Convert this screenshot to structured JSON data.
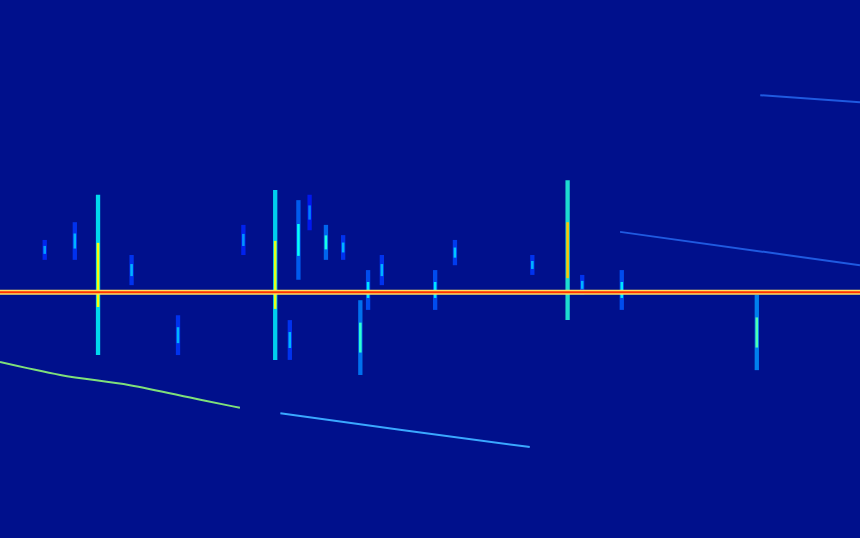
{
  "chart_data": {
    "type": "spectrogram",
    "tick_labels": false,
    "color": "#00108c",
    "xlim": [
      0,
      100
    ],
    "ylim": [
      0,
      100
    ],
    "carrier": {
      "value": 45.7,
      "color": "#ff3000"
    },
    "streaks": [
      {
        "x": 5.2,
        "y": [
          51.7,
          55.4
        ],
        "intensity": 0.28
      },
      {
        "x": 8.7,
        "y": [
          51.7,
          58.7
        ],
        "intensity": 0.3
      },
      {
        "x": 11.4,
        "y": [
          34.0,
          63.8
        ],
        "intensity": 0.62
      },
      {
        "x": 15.3,
        "y": [
          47.0,
          52.6
        ],
        "intensity": 0.3
      },
      {
        "x": 20.7,
        "y": [
          34.0,
          41.4
        ],
        "intensity": 0.3
      },
      {
        "x": 28.3,
        "y": [
          52.6,
          58.2
        ],
        "intensity": 0.27
      },
      {
        "x": 32.0,
        "y": [
          33.1,
          64.7
        ],
        "intensity": 0.6
      },
      {
        "x": 33.7,
        "y": [
          33.1,
          40.5
        ],
        "intensity": 0.3
      },
      {
        "x": 34.7,
        "y": [
          48.0,
          62.8
        ],
        "intensity": 0.38
      },
      {
        "x": 36.0,
        "y": [
          57.2,
          63.8
        ],
        "intensity": 0.25
      },
      {
        "x": 37.9,
        "y": [
          51.7,
          58.2
        ],
        "intensity": 0.4
      },
      {
        "x": 39.9,
        "y": [
          51.7,
          56.3
        ],
        "intensity": 0.3
      },
      {
        "x": 41.9,
        "y": [
          30.3,
          44.2
        ],
        "intensity": 0.42
      },
      {
        "x": 42.8,
        "y": [
          42.4,
          49.8
        ],
        "intensity": 0.35
      },
      {
        "x": 44.4,
        "y": [
          47.0,
          52.6
        ],
        "intensity": 0.3
      },
      {
        "x": 50.6,
        "y": [
          42.4,
          49.8
        ],
        "intensity": 0.35
      },
      {
        "x": 52.9,
        "y": [
          50.7,
          55.4
        ],
        "intensity": 0.32
      },
      {
        "x": 61.9,
        "y": [
          48.9,
          52.6
        ],
        "intensity": 0.3
      },
      {
        "x": 66.0,
        "y": [
          40.5,
          66.5
        ],
        "intensity": 0.68
      },
      {
        "x": 67.7,
        "y": [
          45.2,
          48.9
        ],
        "intensity": 0.3
      },
      {
        "x": 72.3,
        "y": [
          42.4,
          49.8
        ],
        "intensity": 0.35
      },
      {
        "x": 88.0,
        "y": [
          31.2,
          45.2
        ],
        "intensity": 0.45
      }
    ],
    "series": [
      {
        "color": "#7fe07a",
        "x": [
          0,
          7.0,
          15.1,
          23.3,
          27.9
        ],
        "values": [
          32.7,
          30.3,
          28.4,
          25.7,
          24.2
        ]
      },
      {
        "color": "#3aa8ff",
        "x": [
          32.6,
          46.5,
          61.6
        ],
        "values": [
          23.2,
          20.1,
          16.9
        ]
      },
      {
        "color": "#1f5ae0",
        "x": [
          72.1,
          100
        ],
        "values": [
          56.9,
          50.7
        ]
      },
      {
        "color": "#1f5ae0",
        "x": [
          88.4,
          100
        ],
        "values": [
          82.3,
          81.0
        ]
      }
    ]
  }
}
